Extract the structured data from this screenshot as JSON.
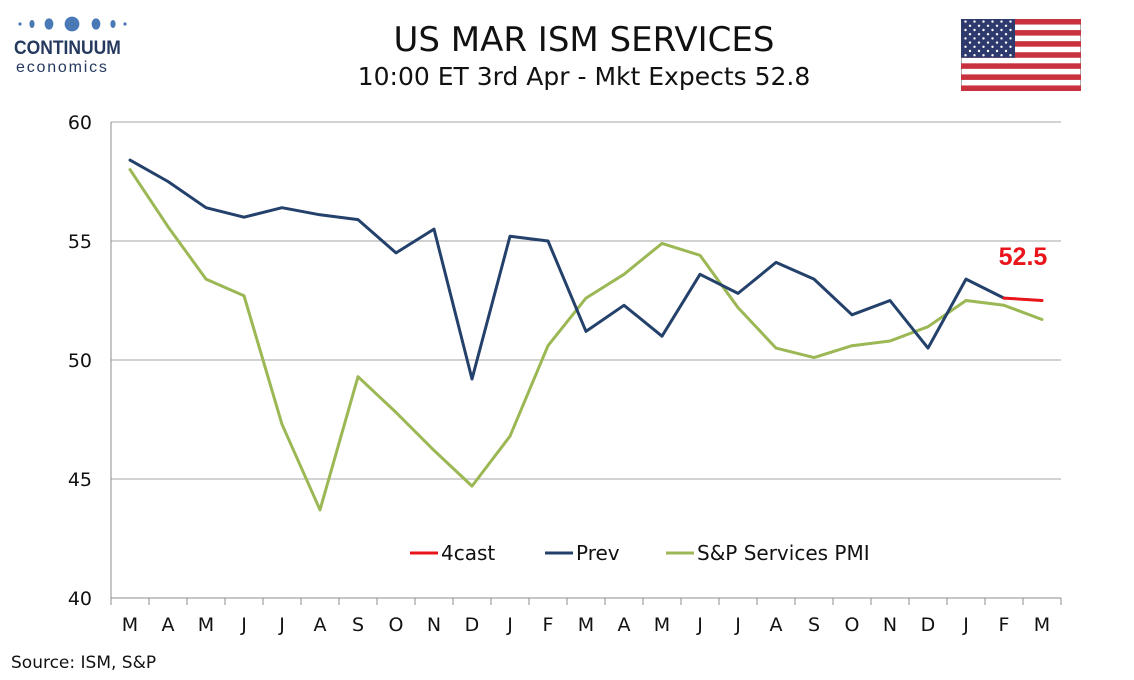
{
  "header": {
    "title": "US MAR ISM SERVICES",
    "subtitle": "10:00 ET 3rd Apr - Mkt Expects 52.8"
  },
  "logo": {
    "name": "CONTINUUM",
    "sub": "economics",
    "color": "#25395f"
  },
  "flag": {
    "country": "US"
  },
  "source": "Source: ISM, S&P",
  "chart_data": {
    "type": "line",
    "categories": [
      "M",
      "A",
      "M",
      "J",
      "J",
      "A",
      "S",
      "O",
      "N",
      "D",
      "J",
      "F",
      "M",
      "A",
      "M",
      "J",
      "J",
      "A",
      "S",
      "O",
      "N",
      "D",
      "J",
      "F",
      "M"
    ],
    "ylim": [
      40,
      60
    ],
    "yticks": [
      40,
      45,
      50,
      55,
      60
    ],
    "grid": true,
    "legend_position": "bottom-center",
    "series": [
      {
        "name": "4cast",
        "color": "#e8151b",
        "values": [
          null,
          null,
          null,
          null,
          null,
          null,
          null,
          null,
          null,
          null,
          null,
          null,
          null,
          null,
          null,
          null,
          null,
          null,
          null,
          null,
          null,
          null,
          null,
          52.6,
          52.5
        ]
      },
      {
        "name": "Prev",
        "color": "#24416b",
        "values": [
          58.4,
          57.5,
          56.4,
          56.0,
          56.4,
          56.1,
          55.9,
          54.5,
          55.5,
          49.2,
          55.2,
          55.0,
          51.2,
          52.3,
          51.0,
          53.6,
          52.8,
          54.1,
          53.4,
          51.9,
          52.5,
          50.5,
          53.4,
          52.6,
          null
        ]
      },
      {
        "name": "S&P Services PMI",
        "color": "#9bb855",
        "values": [
          58.0,
          55.6,
          53.4,
          52.7,
          47.3,
          43.7,
          49.3,
          47.8,
          46.2,
          44.7,
          46.8,
          50.6,
          52.6,
          53.6,
          54.9,
          54.4,
          52.2,
          50.5,
          50.1,
          50.6,
          50.8,
          51.4,
          52.5,
          52.3,
          51.7
        ]
      }
    ],
    "annotations": [
      {
        "text": "52.5",
        "color": "#e8151b"
      }
    ]
  }
}
